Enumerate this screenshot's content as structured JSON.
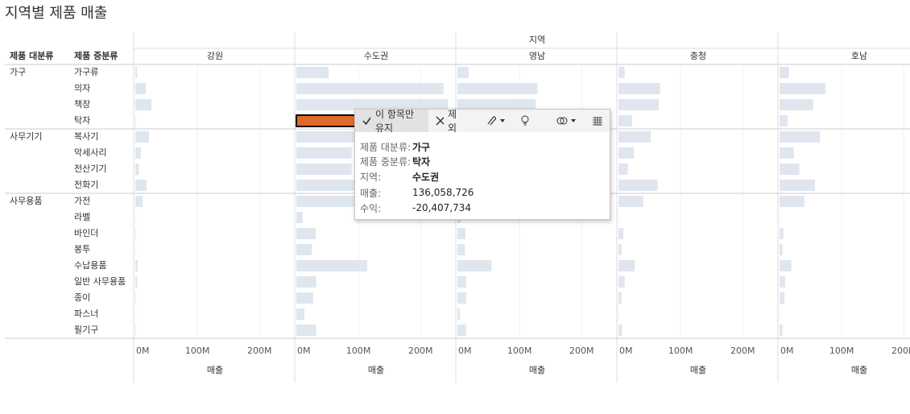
{
  "chart_data": {
    "type": "bar",
    "orientation": "horizontal",
    "title": "지역별 제품 매출",
    "column_header": "지역",
    "row_headers": [
      "제품 대분류",
      "제품 중분류"
    ],
    "groups": [
      {
        "name": "가구",
        "categories": [
          "가구류",
          "의자",
          "책장",
          "탁자"
        ]
      },
      {
        "name": "사무기기",
        "categories": [
          "복사기",
          "악세사리",
          "전산기기",
          "전화기"
        ]
      },
      {
        "name": "사무용품",
        "categories": [
          "가전",
          "라벨",
          "바인더",
          "봉투",
          "수납용품",
          "일반 사무용품",
          "종이",
          "파스너",
          "필기구"
        ]
      }
    ],
    "series": [
      {
        "name": "강원",
        "values": [
          3000000,
          17000000,
          26000000,
          1000000,
          22000000,
          9000000,
          6000000,
          18000000,
          12000000,
          500000,
          1000000,
          500000,
          4000000,
          3000000,
          1000000,
          300000,
          1000000
        ]
      },
      {
        "name": "수도권",
        "values": [
          52000000,
          237000000,
          244000000,
          136058726,
          150000000,
          89000000,
          89000000,
          130000000,
          120000000,
          10000000,
          31000000,
          25000000,
          114000000,
          32000000,
          27000000,
          13000000,
          32000000
        ]
      },
      {
        "name": "영남",
        "values": [
          18000000,
          129000000,
          126000000,
          60000000,
          110000000,
          40000000,
          50000000,
          100000000,
          80000000,
          5000000,
          13000000,
          12000000,
          55000000,
          14000000,
          14000000,
          4000000,
          14000000
        ]
      },
      {
        "name": "충청",
        "values": [
          10000000,
          67000000,
          65000000,
          22000000,
          52000000,
          25000000,
          15000000,
          63000000,
          40000000,
          500000,
          8000000,
          5000000,
          26000000,
          10000000,
          5000000,
          500000,
          6000000
        ]
      },
      {
        "name": "호남",
        "values": [
          15000000,
          74000000,
          54000000,
          13000000,
          65000000,
          23000000,
          32000000,
          57000000,
          40000000,
          500000,
          6000000,
          5000000,
          19000000,
          9000000,
          8000000,
          500000,
          5000000
        ]
      }
    ],
    "color": "#dfe6ee",
    "selected": {
      "series": 1,
      "index": 3,
      "color": "#e0692a"
    },
    "xlabel": "매출",
    "xlim": [
      0,
      258000000
    ],
    "xticks": [
      {
        "value": 0,
        "label": "0M"
      },
      {
        "value": 100000000,
        "label": "100M"
      },
      {
        "value": 200000000,
        "label": "200M"
      }
    ],
    "grid": true,
    "tooltip": {
      "actions": [
        "이 항목만 유지",
        "제외"
      ],
      "fields": [
        {
          "label": "제품 대분류:",
          "value": "가구"
        },
        {
          "label": "제품 중분류:",
          "value": "탁자"
        },
        {
          "label": "지역:",
          "value": "수도권"
        },
        {
          "label": "매출:",
          "value": "136,058,726"
        },
        {
          "label": "수익:",
          "value": "-20,407,734"
        }
      ]
    }
  }
}
